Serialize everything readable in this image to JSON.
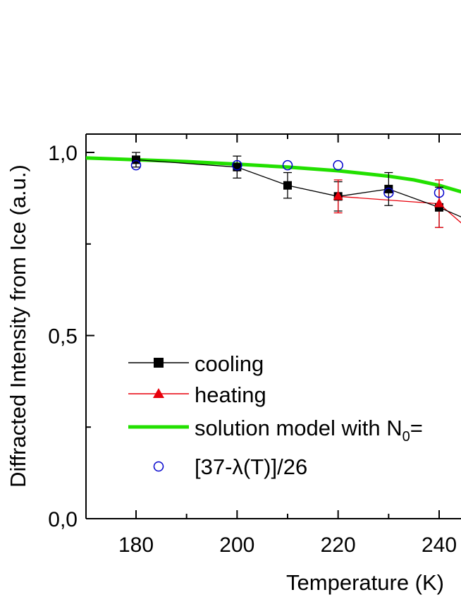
{
  "chart_data": {
    "type": "scatter",
    "xlabel": "Temperature (K)",
    "ylabel": "Diffracted Intensity from Ice (a.u.)",
    "xlim": [
      170,
      245
    ],
    "ylim": [
      0.0,
      1.05
    ],
    "x_ticks": [
      {
        "value": 180,
        "label": "180"
      },
      {
        "value": 200,
        "label": "200"
      },
      {
        "value": 220,
        "label": "220"
      },
      {
        "value": 240,
        "label": "240"
      }
    ],
    "x_minor_ticks": [
      190,
      210,
      230
    ],
    "y_ticks": [
      {
        "value": 0.0,
        "label": "0,0"
      },
      {
        "value": 0.5,
        "label": "0,5"
      },
      {
        "value": 1.0,
        "label": "1,0"
      }
    ],
    "y_minor_ticks": [
      0.25,
      0.75
    ],
    "legend_position": "bottom-left",
    "series": [
      {
        "name": "cooling",
        "marker": "square",
        "color": "#000000",
        "line": true,
        "x": [
          180,
          200,
          210,
          220,
          230,
          240
        ],
        "y": [
          0.98,
          0.96,
          0.91,
          0.88,
          0.9,
          0.85
        ],
        "err": [
          0.02,
          0.03,
          0.035,
          0.04,
          0.045,
          0.055
        ],
        "trailing_line_end": [
          245,
          0.82
        ]
      },
      {
        "name": "heating",
        "marker": "triangle",
        "color": "#e8000b",
        "line": true,
        "x": [
          220,
          240
        ],
        "y": [
          0.88,
          0.86
        ],
        "err": [
          0.045,
          0.065
        ],
        "trailing_line_end": [
          245,
          0.8
        ]
      },
      {
        "name": "solution model with N",
        "name_subscript": "0",
        "name_suffix": "=",
        "marker": "none",
        "color": "#22e000",
        "line": true,
        "curve_x": [
          170,
          180,
          190,
          200,
          210,
          220,
          230,
          235,
          240,
          245
        ],
        "curve_y": [
          0.985,
          0.98,
          0.975,
          0.968,
          0.96,
          0.95,
          0.935,
          0.925,
          0.91,
          0.89
        ]
      },
      {
        "name": "[37-λ(T)]/26",
        "marker": "open-circle",
        "color": "#0000cc",
        "line": false,
        "x": [
          180,
          200,
          210,
          220,
          230,
          240
        ],
        "y": [
          0.965,
          0.965,
          0.965,
          0.965,
          0.89,
          0.89
        ]
      }
    ]
  }
}
